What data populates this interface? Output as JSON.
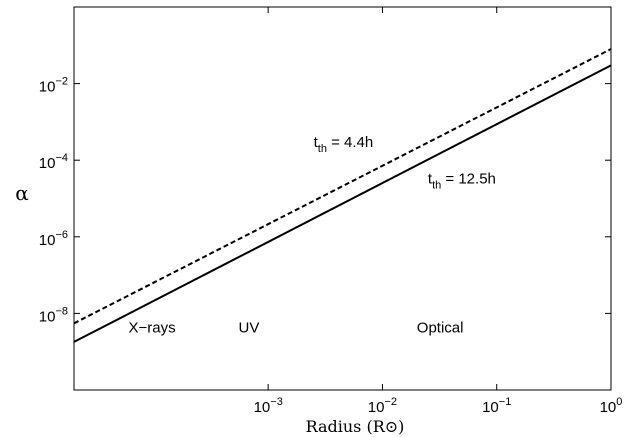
{
  "chart_data": {
    "type": "line",
    "title": "",
    "xlabel": "Radius (R⊙)",
    "ylabel": "α",
    "x_scale": "log",
    "y_scale": "log",
    "xlim": [
      2e-05,
      1
    ],
    "ylim": [
      1e-10,
      1
    ],
    "x_ticks": [
      {
        "value": 0.001,
        "base": "10",
        "exp": "−3"
      },
      {
        "value": 0.01,
        "base": "10",
        "exp": "−2"
      },
      {
        "value": 0.1,
        "base": "10",
        "exp": "−1"
      },
      {
        "value": 1,
        "base": "10",
        "exp": "0"
      }
    ],
    "y_ticks": [
      {
        "value": 1e-08,
        "base": "10",
        "exp": "−8"
      },
      {
        "value": 1e-06,
        "base": "10",
        "exp": "−6"
      },
      {
        "value": 0.0001,
        "base": "10",
        "exp": "−4"
      },
      {
        "value": 0.01,
        "base": "10",
        "exp": "−2"
      }
    ],
    "grid": false,
    "series": [
      {
        "name": "t_th = 4.4h",
        "style": "dashed",
        "color": "#000000",
        "x": [
          2e-05,
          1
        ],
        "y": [
          5.5e-09,
          0.08
        ]
      },
      {
        "name": "t_th = 12.5h",
        "style": "solid",
        "color": "#000000",
        "x": [
          2e-05,
          1
        ],
        "y": [
          1.8e-09,
          0.03
        ]
      }
    ],
    "series_labels": [
      {
        "main": "t",
        "sub": "th",
        "rest": " = 4.4h",
        "x": 0.0025,
        "y": 0.00022
      },
      {
        "main": "t",
        "sub": "th",
        "rest": " = 12.5h",
        "x": 0.025,
        "y": 2.5e-05
      }
    ],
    "annotations": [
      {
        "text": "X−rays",
        "x": 6e-05,
        "y": 3.2e-09
      },
      {
        "text": "UV",
        "x": 0.00055,
        "y": 3.2e-09
      },
      {
        "text": "Optical",
        "x": 0.02,
        "y": 3.2e-09
      }
    ]
  }
}
